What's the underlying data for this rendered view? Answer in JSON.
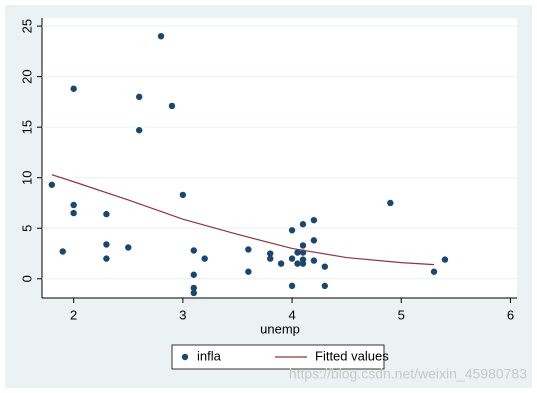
{
  "chart_data": {
    "type": "scatter",
    "xlabel": "unemp",
    "xlim": [
      1.71,
      6.06
    ],
    "ylim": [
      -1.9,
      25.8
    ],
    "xticks": [
      2,
      3,
      4,
      5,
      6
    ],
    "yticks": [
      0,
      5,
      10,
      15,
      20,
      25
    ],
    "grid": true,
    "series": [
      {
        "name": "infla",
        "type": "scatter",
        "color": "#1a476f",
        "x": [
          1.8,
          1.9,
          2.0,
          2.0,
          2.0,
          2.3,
          2.3,
          2.3,
          2.5,
          2.6,
          2.6,
          2.8,
          2.9,
          3.0,
          3.1,
          3.1,
          3.1,
          3.1,
          3.2,
          3.6,
          3.6,
          3.8,
          3.8,
          3.9,
          4.0,
          4.0,
          4.0,
          4.05,
          4.05,
          4.1,
          4.1,
          4.1,
          4.1,
          4.1,
          4.2,
          4.2,
          4.2,
          4.3,
          4.3,
          4.9,
          5.3,
          5.4
        ],
        "values": [
          9.3,
          2.7,
          18.8,
          7.3,
          6.5,
          6.4,
          3.4,
          2.0,
          3.1,
          18.0,
          14.7,
          24.0,
          17.1,
          8.3,
          2.8,
          0.4,
          -0.9,
          -1.4,
          2.0,
          2.9,
          0.7,
          2.5,
          2.0,
          1.5,
          4.8,
          2.0,
          -0.7,
          2.6,
          1.5,
          5.4,
          3.3,
          2.6,
          1.9,
          1.5,
          5.8,
          3.8,
          1.8,
          1.2,
          -0.7,
          7.5,
          0.7,
          1.9
        ]
      },
      {
        "name": "Fitted values",
        "type": "line",
        "color": "#90353b",
        "x": [
          1.8,
          2.0,
          2.5,
          3.0,
          3.5,
          4.0,
          4.5,
          5.0,
          5.3
        ],
        "values": [
          10.3,
          9.6,
          7.8,
          5.9,
          4.4,
          3.0,
          2.1,
          1.6,
          1.4
        ]
      }
    ]
  },
  "watermark": "https://blog.csdn.net/weixin_45980783"
}
